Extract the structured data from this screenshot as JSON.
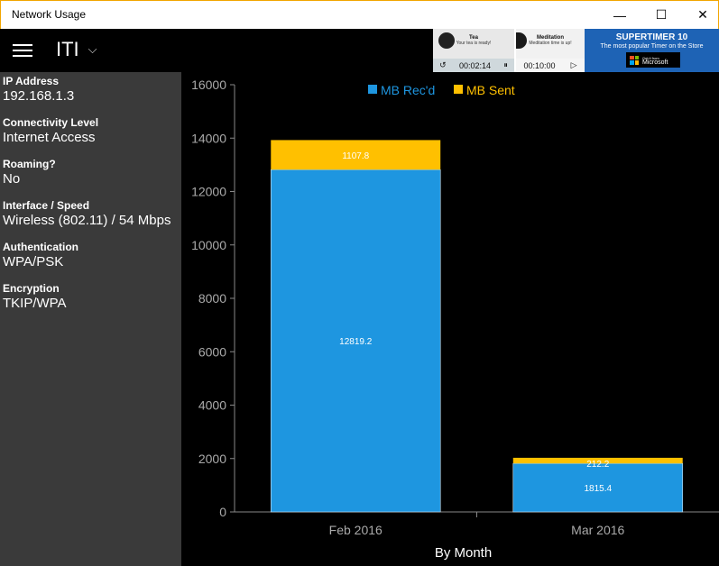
{
  "window": {
    "title": "Network Usage",
    "minimize_glyph": "—",
    "maximize_glyph": "☐",
    "close_glyph": "✕"
  },
  "appbar": {
    "menu_icon": "hamburger-icon",
    "profile_name": "ITI",
    "chevron_glyph": "⌵"
  },
  "ad": {
    "card1": {
      "title": "Tea",
      "subtitle": "Your tea is ready!",
      "time": "00:02:14",
      "restart_glyph": "↺",
      "pause_glyph": "⏸"
    },
    "card2": {
      "title": "Meditation",
      "subtitle": "Meditation time is up!",
      "time": "00:10:00",
      "play_glyph": "▷"
    },
    "promo": {
      "title": "SUPERTIMER 10",
      "subtitle": "The most popular Timer on the Store",
      "store_small": "Get it from",
      "store_big": "Microsoft"
    }
  },
  "sidebar": {
    "items": [
      {
        "label": "IP Address",
        "value": "192.168.1.3"
      },
      {
        "label": "Connectivity Level",
        "value": "Internet Access"
      },
      {
        "label": "Roaming?",
        "value": "No"
      },
      {
        "label": "Interface / Speed",
        "value": "Wireless (802.11) / 54 Mbps"
      },
      {
        "label": "Authentication",
        "value": "WPA/PSK"
      },
      {
        "label": "Encryption",
        "value": "TKIP/WPA"
      }
    ]
  },
  "colors": {
    "received": "#1e96e0",
    "sent": "#ffc000",
    "axis": "#888888",
    "text": "#aaaaaa"
  },
  "chart_data": {
    "type": "bar",
    "stacked": true,
    "categories": [
      "Feb 2016",
      "Mar 2016"
    ],
    "series": [
      {
        "name": "MB Rec'd",
        "values": [
          12819.2,
          1815.4
        ],
        "labels": [
          "12819.2",
          "1815.4"
        ]
      },
      {
        "name": "MB Sent",
        "values": [
          1107.8,
          212.2
        ],
        "labels": [
          "1107.8",
          "212.2"
        ]
      }
    ],
    "xlabel": "By Month",
    "ylabel": "",
    "ylim": [
      0,
      16000
    ],
    "yticks": [
      "0",
      "2000",
      "4000",
      "6000",
      "8000",
      "10000",
      "12000",
      "14000",
      "16000"
    ],
    "legend": "top-center",
    "grid": false
  }
}
